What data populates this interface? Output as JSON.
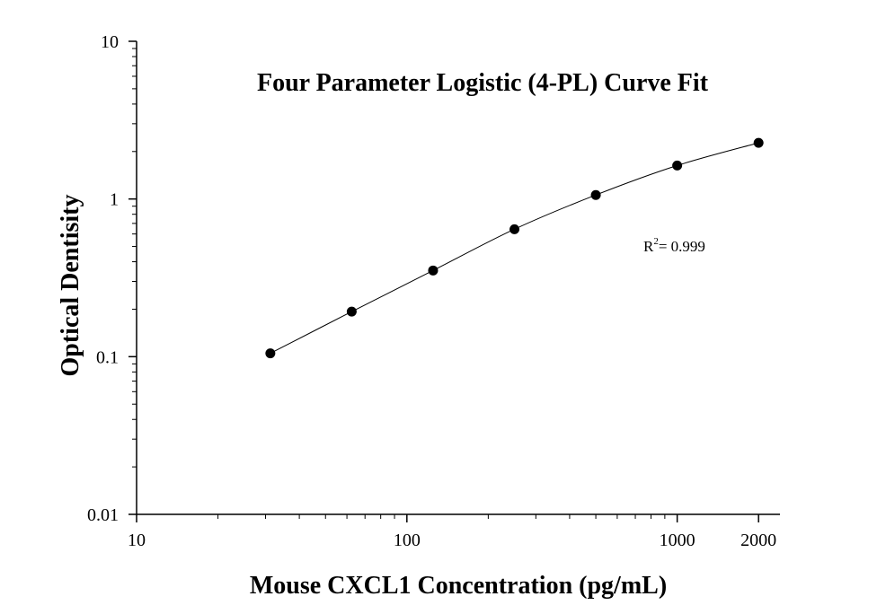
{
  "chart_data": {
    "type": "scatter",
    "title": "Four Parameter Logistic (4-PL) Curve Fit",
    "xlabel": "Mouse CXCL1 Concentration (pg/mL)",
    "ylabel": "Optical Dentisity",
    "x_scale": "log",
    "y_scale": "log",
    "xlim": [
      10,
      2400
    ],
    "ylim": [
      0.01,
      10
    ],
    "x_ticks": [
      10,
      100,
      1000,
      2000
    ],
    "x_tick_labels": [
      "10",
      "100",
      "1000",
      "2000"
    ],
    "y_ticks": [
      0.01,
      0.1,
      1,
      10
    ],
    "y_tick_labels": [
      "0.01",
      "0.1",
      "1",
      "10"
    ],
    "grid": false,
    "series": [
      {
        "x": [
          31.25,
          62.5,
          125,
          250,
          500,
          1000,
          2000
        ],
        "y": [
          0.105,
          0.193,
          0.352,
          0.643,
          1.06,
          1.63,
          2.27
        ]
      }
    ],
    "annotation": {
      "r2_label": "R",
      "r2_superscript": "2",
      "r2_value": "= 0.999"
    }
  }
}
